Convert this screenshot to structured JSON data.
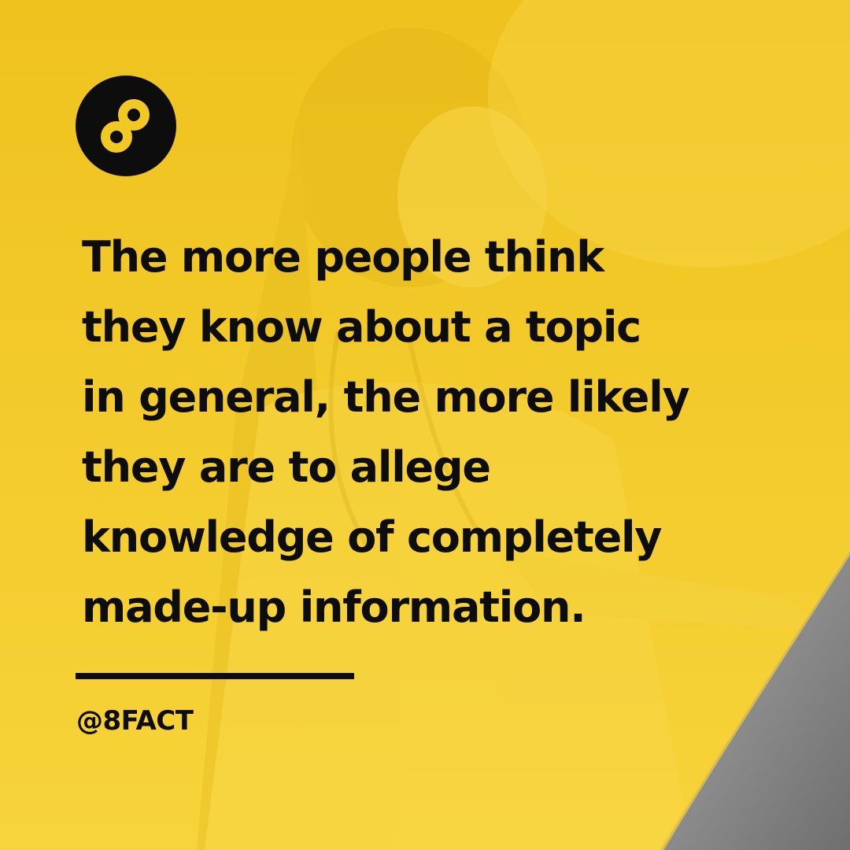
{
  "post": {
    "headline": "The more people think\nthey know about a topic\nin general, the more likely\nthey are to allege\nknowledge of completely\nmade-up information.",
    "handle": "@8FACT"
  },
  "logo": {
    "icon": "infinity-eight-icon"
  },
  "colors": {
    "background": "#f2c824",
    "text": "#0d0d0d",
    "corner_gray": "#8c8c8c"
  }
}
